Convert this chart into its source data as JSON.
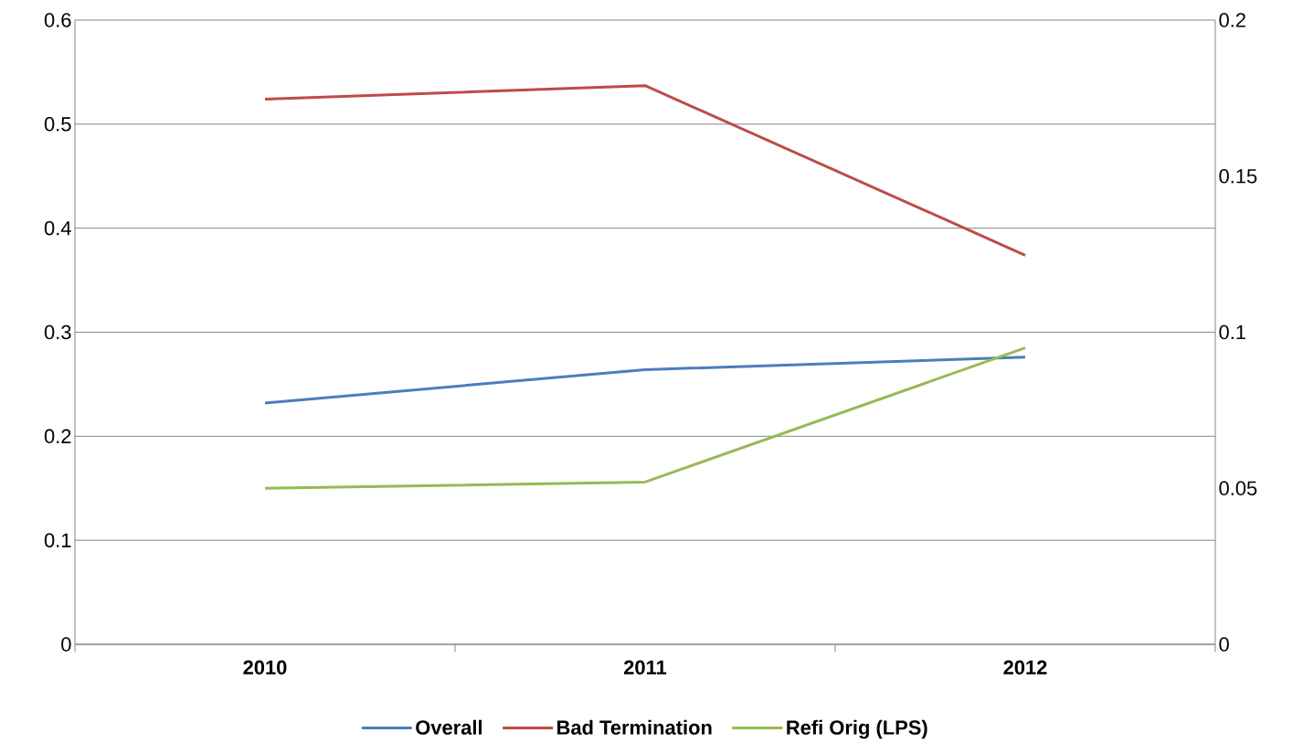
{
  "chart_data": {
    "type": "line",
    "categories": [
      "2010",
      "2011",
      "2012"
    ],
    "series": [
      {
        "name": "Overall",
        "color": "#4a7ebb",
        "values": [
          0.232,
          0.264,
          0.276
        ]
      },
      {
        "name": "Bad Termination",
        "color": "#be4b48",
        "values": [
          0.524,
          0.537,
          0.374
        ]
      },
      {
        "name": "Refi Orig (LPS)",
        "color": "#98b954",
        "values": [
          0.05,
          0.052,
          0.095
        ],
        "axis": "y2"
      }
    ],
    "ylim": [
      0,
      0.6
    ],
    "yticks": [
      0,
      0.1,
      0.2,
      0.3,
      0.4,
      0.5,
      0.6
    ],
    "y2lim": [
      0,
      0.2
    ],
    "y2ticks": [
      0,
      0.05,
      0.1,
      0.15,
      0.2
    ],
    "grid": "y",
    "legend": "bottom"
  }
}
